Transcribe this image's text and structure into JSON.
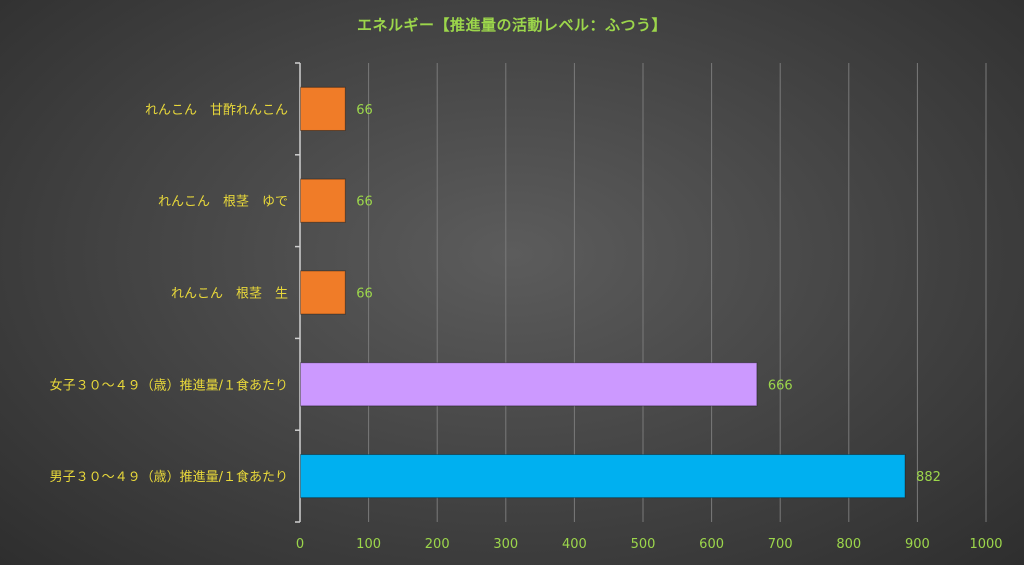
{
  "chart_data": {
    "type": "bar",
    "orientation": "horizontal",
    "title": "エネルギー【推進量の活動レベル：ふつう】",
    "categories": [
      "れんこん　甘酢れんこん",
      "れんこん　根茎　ゆで",
      "れんこん　根茎　生",
      "女子３０～４９（歳）推進量/１食あたり",
      "男子３０～４９（歳）推進量/１食あたり"
    ],
    "values": [
      66,
      66,
      66,
      666,
      882
    ],
    "value_labels": [
      "66",
      "66",
      "66",
      "666",
      "882"
    ],
    "bar_colors": [
      "#f07c28",
      "#f07c28",
      "#f07c28",
      "#cc99ff",
      "#00b0f0"
    ],
    "xlim": [
      0,
      1000
    ],
    "x_ticks": [
      0,
      100,
      200,
      300,
      400,
      500,
      600,
      700,
      800,
      900,
      1000
    ],
    "xlabel": "",
    "ylabel": "",
    "grid": true,
    "legend": "none"
  }
}
